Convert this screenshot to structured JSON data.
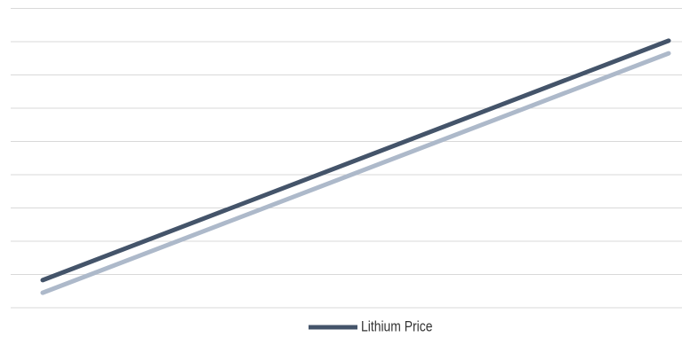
{
  "chart_data": {
    "type": "line",
    "categories": [
      null,
      null
    ],
    "series": [
      {
        "name": "Lithium Price",
        "color": "#44546a",
        "values": [
          0.83,
          8.03
        ]
      },
      {
        "color": "#adb9ca",
        "values": [
          0.45,
          7.65
        ]
      }
    ],
    "ylim": [
      0,
      9
    ],
    "yticks": [
      0,
      1,
      2,
      3,
      4,
      5,
      6,
      7,
      8,
      9
    ],
    "grid": true,
    "tick_labels": false,
    "legend": "bottom"
  }
}
